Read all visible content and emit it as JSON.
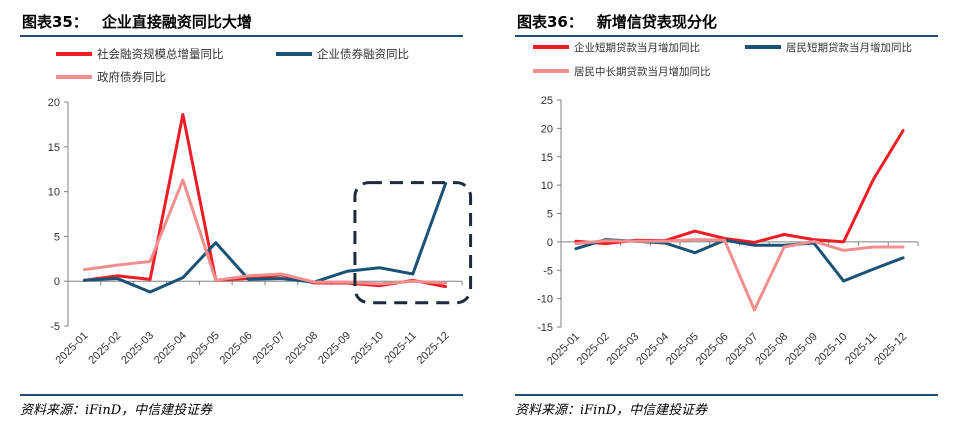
{
  "left": {
    "title_num": "图表35：",
    "title_text": "企业直接融资同比大增",
    "source": "资料来源：iFinD，中信建投证券",
    "chart_data": {
      "type": "line",
      "categories": [
        "2025-01",
        "2025-02",
        "2025-03",
        "2025-04",
        "2025-05",
        "2025-06",
        "2025-07",
        "2025-08",
        "2025-09",
        "2025-10",
        "2025-11",
        "2025-12"
      ],
      "ylim": [
        -5,
        20
      ],
      "yticks": [
        -5,
        0,
        5,
        10,
        15,
        20
      ],
      "xlabel": "",
      "ylabel": "",
      "series": [
        {
          "name": "社会融资规模总增量同比",
          "color": "#ee1c25",
          "values": [
            0.1,
            0.6,
            0.2,
            18.6,
            0.1,
            0.3,
            0.7,
            -0.2,
            -0.2,
            -0.5,
            0.1,
            -0.6
          ]
        },
        {
          "name": "企业债券融资同比",
          "color": "#1a5276",
          "values": [
            0.1,
            0.3,
            -1.2,
            0.4,
            4.3,
            0.2,
            0.3,
            -0.1,
            1.1,
            1.5,
            0.8,
            10.9
          ]
        },
        {
          "name": "政府债券同比",
          "color": "#f28e8e",
          "values": [
            1.3,
            1.8,
            2.2,
            11.3,
            0.1,
            0.6,
            0.8,
            -0.1,
            -0.1,
            -0.3,
            0.0,
            -0.2
          ]
        }
      ],
      "annotation": "dashed-rounded-box-highlighting-2025-10-to-2025-12"
    }
  },
  "right": {
    "title_num": "图表36：",
    "title_text": "新增信贷表现分化",
    "source": "资料来源：iFinD，中信建投证券",
    "chart_data": {
      "type": "line",
      "categories": [
        "2025-01",
        "2025-02",
        "2025-03",
        "2025-04",
        "2025-05",
        "2025-06",
        "2025-07",
        "2025-08",
        "2025-09",
        "2025-10",
        "2025-11",
        "2025-12"
      ],
      "ylim": [
        -15,
        25
      ],
      "yticks": [
        -15,
        -10,
        -5,
        0,
        5,
        10,
        15,
        20,
        25
      ],
      "xlabel": "",
      "ylabel": "",
      "series": [
        {
          "name": "企业短期贷款当月增加同比",
          "color": "#ee1c25",
          "values": [
            0.1,
            -0.3,
            0.3,
            0.2,
            1.9,
            0.6,
            -0.1,
            1.3,
            0.4,
            0.0,
            11.0,
            19.6
          ]
        },
        {
          "name": "居民短期贷款当月增加同比",
          "color": "#1a5276",
          "values": [
            -1.2,
            0.4,
            0.1,
            -0.2,
            -1.9,
            0.3,
            -0.6,
            -0.6,
            -0.2,
            -6.9,
            -4.8,
            -2.8
          ]
        },
        {
          "name": "居民中长期贷款当月增加同比",
          "color": "#f28e8e",
          "values": [
            -0.3,
            0.2,
            0.1,
            0.1,
            0.4,
            0.3,
            -12.0,
            -0.9,
            0.1,
            -1.5,
            -0.9,
            -0.9
          ]
        }
      ]
    }
  }
}
